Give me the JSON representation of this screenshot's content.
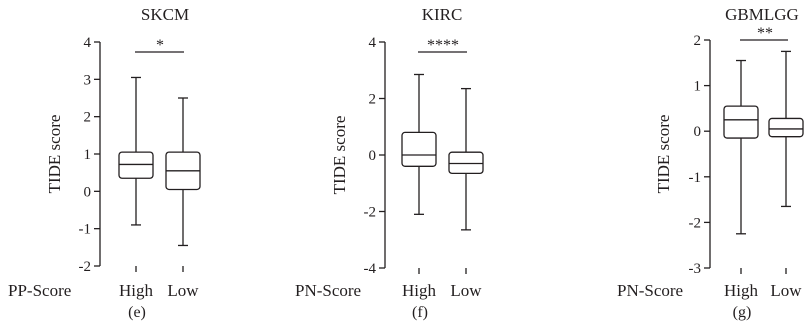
{
  "chart_data": [
    {
      "type": "box",
      "title": "SKCM",
      "ylabel": "TIDE score",
      "group_label": "PP-Score",
      "categories": [
        "High",
        "Low"
      ],
      "ylim": [
        -2,
        4
      ],
      "yticks": [
        "-2",
        "-1",
        "0",
        "1",
        "2",
        "3",
        "4"
      ],
      "boxes": [
        {
          "name": "High",
          "min": -0.9,
          "q1": 0.35,
          "median": 0.72,
          "q3": 1.05,
          "max": 3.05
        },
        {
          "name": "Low",
          "min": -1.45,
          "q1": 0.05,
          "median": 0.55,
          "q3": 1.05,
          "max": 2.5
        }
      ],
      "significance": "*",
      "panel_label": "(e)"
    },
    {
      "type": "box",
      "title": "KIRC",
      "ylabel": "TIDE score",
      "group_label": "PN-Score",
      "categories": [
        "High",
        "Low"
      ],
      "ylim": [
        -4,
        4
      ],
      "yticks": [
        "-4",
        "-2",
        "0",
        "2",
        "4"
      ],
      "boxes": [
        {
          "name": "High",
          "min": -2.1,
          "q1": -0.4,
          "median": 0.0,
          "q3": 0.8,
          "max": 2.85
        },
        {
          "name": "Low",
          "min": -2.65,
          "q1": -0.65,
          "median": -0.3,
          "q3": 0.1,
          "max": 2.35
        }
      ],
      "significance": "****",
      "panel_label": "(f)"
    },
    {
      "type": "box",
      "title": "GBMLGG",
      "ylabel": "TIDE score",
      "group_label": "PN-Score",
      "categories": [
        "High",
        "Low"
      ],
      "ylim": [
        -3,
        2
      ],
      "yticks": [
        "-3",
        "-2",
        "-1",
        "0",
        "1",
        "2"
      ],
      "boxes": [
        {
          "name": "High",
          "min": -2.25,
          "q1": -0.15,
          "median": 0.25,
          "q3": 0.55,
          "max": 1.55
        },
        {
          "name": "Low",
          "min": -1.65,
          "q1": -0.12,
          "median": 0.05,
          "q3": 0.28,
          "max": 1.75
        }
      ],
      "significance": "**",
      "panel_label": "(g)"
    }
  ]
}
